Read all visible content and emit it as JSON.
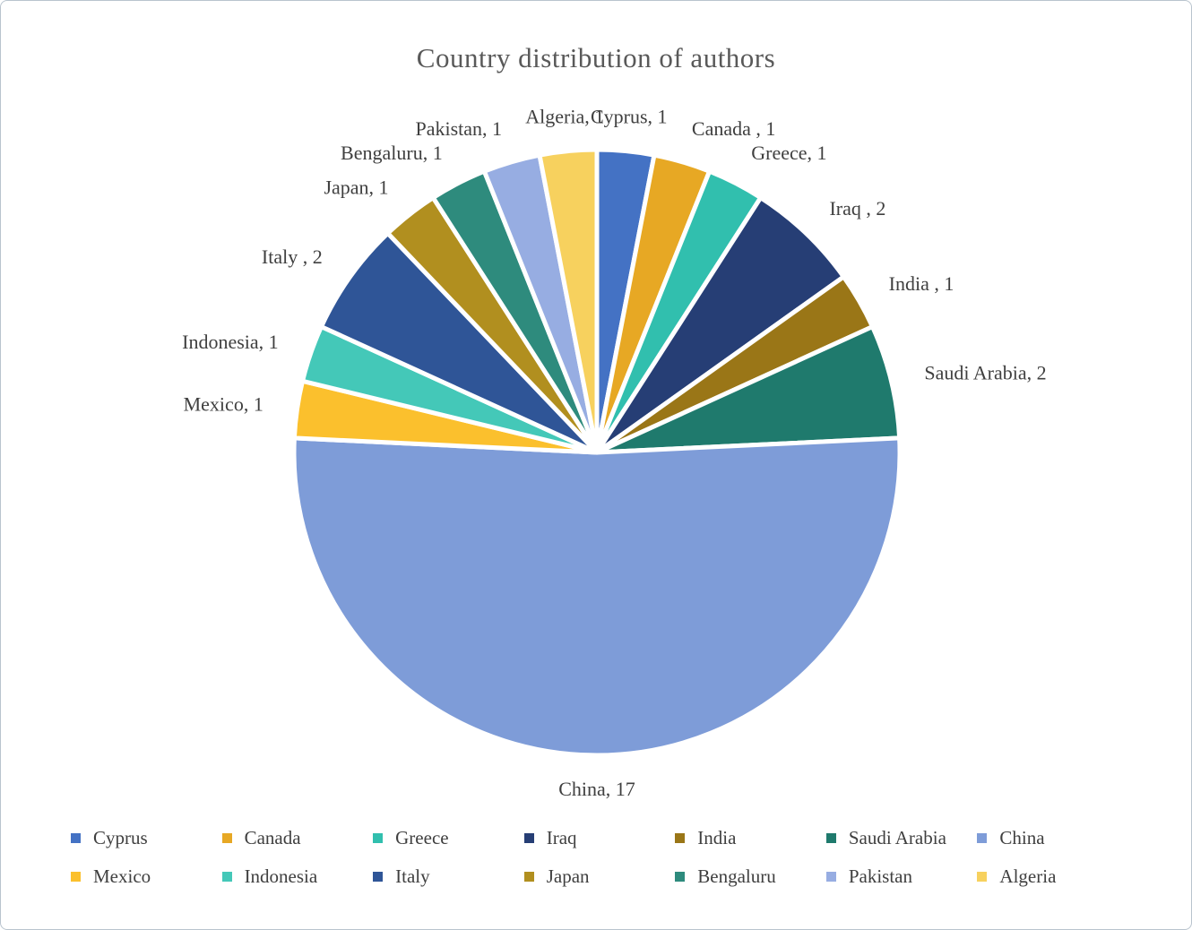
{
  "chart_data": {
    "type": "pie",
    "title": "Country distribution of authors",
    "total": 33,
    "legend_position": "bottom",
    "legend_rows": 2,
    "legend_items_per_row": 7,
    "slices": [
      {
        "label": "Cyprus",
        "value": 1,
        "color": "#4472C4",
        "data_label": "Cyprus, 1"
      },
      {
        "label": "Canada",
        "value": 1,
        "color": "#E7A824",
        "data_label": "Canada , 1"
      },
      {
        "label": "Greece",
        "value": 1,
        "color": "#31BFAE",
        "data_label": "Greece, 1"
      },
      {
        "label": "Iraq",
        "value": 2,
        "color": "#263E75",
        "data_label": "Iraq , 2"
      },
      {
        "label": "India",
        "value": 1,
        "color": "#9A7617",
        "data_label": "India , 1"
      },
      {
        "label": "Saudi Arabia",
        "value": 2,
        "color": "#1F7A6D",
        "data_label": "Saudi Arabia, 2"
      },
      {
        "label": "China",
        "value": 17,
        "color": "#7E9CD8",
        "data_label": "China, 17"
      },
      {
        "label": "Mexico",
        "value": 1,
        "color": "#FBC02D",
        "data_label": "Mexico, 1"
      },
      {
        "label": "Indonesia",
        "value": 1,
        "color": "#44C8B8",
        "data_label": "Indonesia, 1"
      },
      {
        "label": "Italy",
        "value": 2,
        "color": "#2F5597",
        "data_label": "Italy , 2"
      },
      {
        "label": "Japan",
        "value": 1,
        "color": "#B18F1F",
        "data_label": "Japan, 1"
      },
      {
        "label": "Bengaluru",
        "value": 1,
        "color": "#2E8B7D",
        "data_label": "Bengaluru, 1"
      },
      {
        "label": "Pakistan",
        "value": 1,
        "color": "#97ADE2",
        "data_label": "Pakistan, 1"
      },
      {
        "label": "Algeria",
        "value": 1,
        "color": "#F7D15E",
        "data_label": "Algeria,  1"
      }
    ]
  }
}
